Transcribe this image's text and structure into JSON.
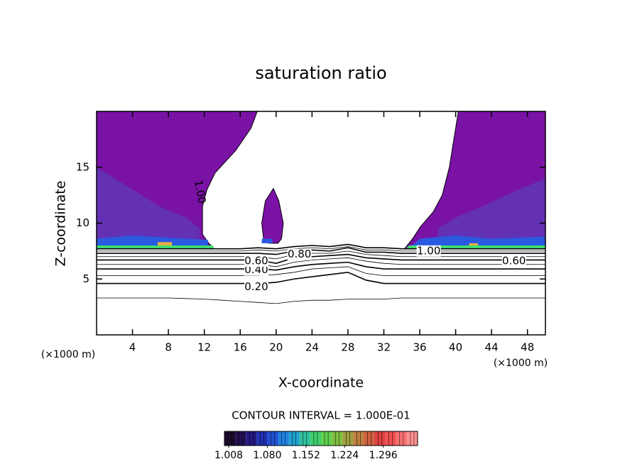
{
  "chart_data": {
    "type": "contour",
    "title": "saturation ratio",
    "xlabel": "X-coordinate",
    "ylabel": "Z-coordinate",
    "x_unit": "(×1000 m)",
    "y_unit": "(×1000 m)",
    "subtitle": "CONTOUR INTERVAL = 1.000E-01",
    "xlim": [
      0,
      50
    ],
    "ylim": [
      0,
      20
    ],
    "xticks": [
      4,
      8,
      12,
      16,
      20,
      24,
      28,
      32,
      36,
      40,
      44,
      48
    ],
    "yticks": [
      5,
      10,
      15
    ],
    "line_color": "#000000",
    "contour_x": [
      0,
      4,
      8,
      12,
      14,
      16,
      18,
      20,
      22,
      24,
      26,
      28,
      30,
      32,
      34,
      36,
      40,
      44,
      48,
      50
    ],
    "contours": [
      {
        "level": 0.1,
        "y": [
          3.3,
          3.3,
          3.3,
          3.2,
          3.1,
          3.0,
          2.9,
          2.8,
          3.0,
          3.1,
          3.1,
          3.2,
          3.2,
          3.2,
          3.3,
          3.3,
          3.3,
          3.3,
          3.3,
          3.3
        ]
      },
      {
        "level": 0.2,
        "y": [
          4.6,
          4.6,
          4.6,
          4.6,
          4.6,
          4.6,
          4.6,
          4.7,
          5.0,
          5.2,
          5.4,
          5.6,
          4.9,
          4.6,
          4.6,
          4.6,
          4.6,
          4.6,
          4.6,
          4.6
        ]
      },
      {
        "level": 0.3,
        "y": [
          5.3,
          5.3,
          5.3,
          5.3,
          5.3,
          5.3,
          5.3,
          5.4,
          5.6,
          5.9,
          6.0,
          6.1,
          5.5,
          5.3,
          5.3,
          5.3,
          5.3,
          5.3,
          5.3,
          5.3
        ]
      },
      {
        "level": 0.4,
        "y": [
          5.9,
          5.9,
          5.9,
          5.9,
          5.9,
          5.9,
          5.9,
          5.8,
          6.1,
          6.3,
          6.4,
          6.5,
          6.1,
          5.9,
          5.9,
          5.9,
          5.9,
          5.9,
          5.9,
          5.9
        ]
      },
      {
        "level": 0.5,
        "y": [
          6.3,
          6.3,
          6.3,
          6.3,
          6.3,
          6.3,
          6.3,
          6.1,
          6.5,
          6.7,
          6.8,
          6.9,
          6.6,
          6.4,
          6.3,
          6.3,
          6.3,
          6.3,
          6.3,
          6.3
        ]
      },
      {
        "level": 0.6,
        "y": [
          6.7,
          6.7,
          6.7,
          6.7,
          6.7,
          6.7,
          6.7,
          6.4,
          6.9,
          7.0,
          7.1,
          7.2,
          6.9,
          6.8,
          6.7,
          6.7,
          6.7,
          6.7,
          6.7,
          6.7
        ]
      },
      {
        "level": 0.7,
        "y": [
          7.0,
          7.0,
          7.0,
          7.0,
          7.0,
          7.0,
          7.0,
          6.8,
          7.2,
          7.3,
          7.3,
          7.5,
          7.2,
          7.1,
          7.0,
          7.0,
          7.0,
          7.0,
          7.0,
          7.0
        ]
      },
      {
        "level": 0.8,
        "y": [
          7.3,
          7.3,
          7.3,
          7.3,
          7.3,
          7.3,
          7.3,
          7.2,
          7.5,
          7.6,
          7.5,
          7.8,
          7.4,
          7.4,
          7.3,
          7.3,
          7.3,
          7.3,
          7.3,
          7.3
        ]
      },
      {
        "level": 0.9,
        "y": [
          7.5,
          7.5,
          7.5,
          7.5,
          7.5,
          7.5,
          7.6,
          7.5,
          7.7,
          7.8,
          7.7,
          7.9,
          7.6,
          7.6,
          7.5,
          7.5,
          7.5,
          7.5,
          7.5,
          7.5
        ]
      },
      {
        "level": 1.0,
        "y": [
          7.7,
          7.7,
          7.7,
          7.7,
          7.7,
          7.7,
          7.8,
          7.7,
          7.9,
          8.0,
          7.9,
          8.1,
          7.8,
          7.8,
          7.7,
          7.7,
          7.7,
          7.7,
          7.7,
          7.7
        ]
      }
    ],
    "contour_labels": [
      {
        "text": "0.20",
        "x": 17.8,
        "y": 4.3
      },
      {
        "text": "0.40",
        "x": 17.8,
        "y": 5.8
      },
      {
        "text": "0.60",
        "x": 17.8,
        "y": 6.6
      },
      {
        "text": "0.80",
        "x": 22.6,
        "y": 7.2
      },
      {
        "text": "1.00",
        "x": 37.0,
        "y": 7.5
      },
      {
        "text": "0.60",
        "x": 46.5,
        "y": 6.6
      },
      {
        "text": "1.00",
        "x": 11.5,
        "y": 12.8,
        "vertical": true
      }
    ],
    "filled_regions": [
      {
        "color": "#7a12a6",
        "x": [
          0,
          0,
          17.9,
          17.2,
          15.5,
          14,
          13.2,
          12.3,
          11.8,
          11.8,
          12.5,
          13,
          13
        ],
        "y": [
          7.7,
          20,
          20,
          18.5,
          16.5,
          15.2,
          14.5,
          13,
          11.5,
          9,
          8.2,
          7.8,
          7.7
        ]
      },
      {
        "color": "#7a12a6",
        "x": [
          50,
          50,
          40.3,
          39.8,
          39.3,
          38.5,
          37.5,
          36.1,
          35.2,
          34.3,
          34.5
        ],
        "y": [
          7.7,
          20,
          20,
          17.5,
          15,
          12.5,
          11,
          9.7,
          8.6,
          7.7,
          7.7
        ]
      },
      {
        "color": "#7a12a6",
        "x": [
          19.7,
          20.3,
          20.8,
          20.6,
          20.2,
          19.2,
          18.6,
          18.4,
          18.8
        ],
        "y": [
          13.1,
          12,
          10,
          8.6,
          8.2,
          8.2,
          8.6,
          10,
          12
        ]
      },
      {
        "color": "#6430b4",
        "x": [
          0,
          0,
          3,
          7,
          10,
          11.5,
          11.5
        ],
        "y": [
          8.3,
          15,
          13.5,
          11.5,
          10.5,
          9.5,
          8.3
        ]
      },
      {
        "color": "#6430b4",
        "x": [
          50,
          50,
          47,
          43,
          40,
          38,
          38
        ],
        "y": [
          8.3,
          14,
          13,
          11.5,
          10.5,
          9.5,
          8.3
        ]
      },
      {
        "color": "#2a5ae0",
        "x": [
          0,
          0,
          4,
          8,
          12.4,
          12.4
        ],
        "y": [
          7.9,
          8.6,
          8.9,
          8.7,
          8.5,
          7.9
        ]
      },
      {
        "color": "#2a5ae0",
        "x": [
          35,
          36,
          40,
          44,
          50,
          50
        ],
        "y": [
          7.9,
          8.6,
          8.9,
          8.6,
          8.8,
          7.9
        ]
      },
      {
        "color": "#3ee070",
        "x": [
          0,
          0,
          13,
          13
        ],
        "y": [
          7.65,
          8.0,
          8.0,
          7.65
        ]
      },
      {
        "color": "#3ee070",
        "x": [
          34.4,
          34.8,
          50,
          50
        ],
        "y": [
          7.65,
          8.0,
          8.0,
          7.65
        ]
      },
      {
        "color": "#e8b040",
        "x": [
          6.8,
          6.8,
          8.4,
          8.4
        ],
        "y": [
          8.0,
          8.3,
          8.3,
          8.0
        ]
      },
      {
        "color": "#e8b040",
        "x": [
          41.5,
          41.5,
          42.5,
          42.5
        ],
        "y": [
          8.0,
          8.2,
          8.2,
          8.0
        ]
      },
      {
        "color": "#2a5ae0",
        "x": [
          18.4,
          18.4,
          19.6,
          19.6
        ],
        "y": [
          8.2,
          8.6,
          8.6,
          8.2
        ]
      }
    ],
    "colorbar": {
      "clim": [
        1.0,
        1.36
      ],
      "colors": [
        "#1a0a2a",
        "#201050",
        "#241880",
        "#2030b0",
        "#2050d0",
        "#2080e0",
        "#20a0d0",
        "#30c0a0",
        "#40d070",
        "#60d050",
        "#80c040",
        "#a0a040",
        "#c08040",
        "#d06040",
        "#e04040",
        "#f05050",
        "#f87070",
        "#ff9090"
      ],
      "ticks": [
        1.008,
        {
          "value": 1.08,
          "label": "1.080"
        },
        1.152,
        1.224,
        1.296
      ]
    }
  }
}
